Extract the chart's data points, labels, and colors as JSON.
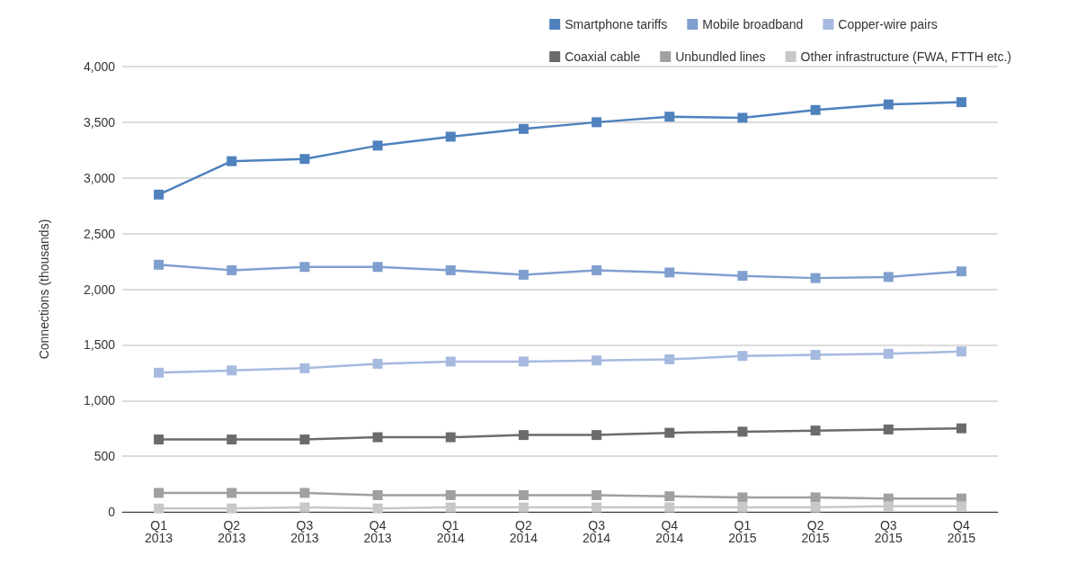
{
  "chart_data": {
    "type": "line",
    "ylabel": "Connections (thousands)",
    "categories": [
      "Q1\n2013",
      "Q2\n2013",
      "Q3\n2013",
      "Q4\n2013",
      "Q1\n2014",
      "Q2\n2014",
      "Q3\n2014",
      "Q4\n2014",
      "Q1\n2015",
      "Q2\n2015",
      "Q3\n2015",
      "Q4\n2015"
    ],
    "series": [
      {
        "name": "Smartphone tariffs",
        "color": "#4f81bd",
        "values": [
          2850,
          3150,
          3170,
          3290,
          3370,
          3440,
          3500,
          3550,
          3540,
          3610,
          3660,
          3680
        ]
      },
      {
        "name": "Mobile broadband",
        "color": "#7f9fcf",
        "values": [
          2220,
          2170,
          2200,
          2200,
          2170,
          2130,
          2170,
          2150,
          2120,
          2100,
          2110,
          2160
        ]
      },
      {
        "name": "Copper-wire pairs",
        "color": "#a6b9df",
        "values": [
          1250,
          1270,
          1290,
          1330,
          1350,
          1350,
          1360,
          1370,
          1400,
          1410,
          1420,
          1440
        ]
      },
      {
        "name": "Coaxial cable",
        "color": "#6b6b6b",
        "values": [
          650,
          650,
          650,
          670,
          670,
          690,
          690,
          710,
          720,
          730,
          740,
          750
        ]
      },
      {
        "name": "Unbundled lines",
        "color": "#a0a0a0",
        "values": [
          170,
          170,
          170,
          150,
          150,
          150,
          150,
          140,
          130,
          130,
          120,
          120
        ]
      },
      {
        "name": "Other infrastructure (FWA, FTTH etc.)",
        "color": "#c8c8c8",
        "values": [
          30,
          30,
          40,
          30,
          40,
          40,
          40,
          40,
          40,
          40,
          50,
          50
        ]
      }
    ],
    "ylim": [
      0,
      4000
    ],
    "yticks": [
      {
        "value": 0,
        "label": "0"
      },
      {
        "value": 500,
        "label": "500"
      },
      {
        "value": 1000,
        "label": "1,000"
      },
      {
        "value": 1500,
        "label": "1,500"
      },
      {
        "value": 2000,
        "label": "2,000"
      },
      {
        "value": 2500,
        "label": "2,500"
      },
      {
        "value": 3000,
        "label": "3,000"
      },
      {
        "value": 3500,
        "label": "3,500"
      },
      {
        "value": 4000,
        "label": "4,000"
      }
    ],
    "grid": "y",
    "legend": "top right",
    "marker": "square",
    "line_style": "solid"
  }
}
